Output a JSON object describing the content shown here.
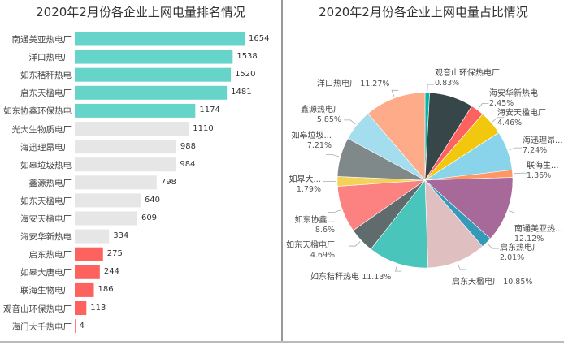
{
  "chart_data": [
    {
      "type": "bar",
      "orientation": "horizontal",
      "title": "2020年2月份各企业上网电量排名情况",
      "categories": [
        "南通美亚热电厂",
        "洋口热电厂",
        "如东秸秆热电",
        "启东天楹电厂",
        "如东协鑫环保热电",
        "光大生物质电厂",
        "海迅理昂电厂",
        "如皋垃圾热电",
        "鑫源热电厂",
        "如东天楹电厂",
        "海安天楹电厂",
        "海安华新热电",
        "启东热电厂",
        "如皋大唐电厂",
        "联海生物电厂",
        "观音山环保热电厂",
        "海门大千热电厂"
      ],
      "values": [
        1654,
        1538,
        1520,
        1481,
        1174,
        1110,
        988,
        984,
        798,
        640,
        609,
        334,
        275,
        244,
        186,
        113,
        4
      ],
      "colors": {
        "top": "#66D4C8",
        "middle": "#E6E6E6",
        "bottom": "#FD625E"
      },
      "grid": false
    },
    {
      "type": "pie",
      "title": "2020年2月份各企业上网电量占比情况",
      "slices": [
        {
          "label": "观音山环保热电厂",
          "pct": "0.83%",
          "value": 0.83,
          "color": "#01B8AA"
        },
        {
          "label": "",
          "pct": "",
          "value": 8.13,
          "color": "#374649"
        },
        {
          "label": "海安华新热电",
          "pct": "2.45%",
          "value": 2.45,
          "color": "#FD625E"
        },
        {
          "label": "海安天楹电厂",
          "pct": "4.46%",
          "value": 4.46,
          "color": "#F2C80F"
        },
        {
          "label": "",
          "pct": "",
          "value": 0.03,
          "color": "#5F6B6D"
        },
        {
          "label": "海迅理昂...",
          "pct": "7.24%",
          "value": 7.24,
          "color": "#8AD4EB"
        },
        {
          "label": "联海生...",
          "pct": "1.36%",
          "value": 1.36,
          "color": "#FE9666"
        },
        {
          "label": "南通美亚热...",
          "pct": "12.12%",
          "value": 12.12,
          "color": "#A66999"
        },
        {
          "label": "启东热电厂",
          "pct": "2.01%",
          "value": 2.01,
          "color": "#3599B8"
        },
        {
          "label": "启东天楹电厂",
          "pct": "10.85%",
          "value": 10.85,
          "color": "#DFBFBF"
        },
        {
          "label": "如东秸秆热电",
          "pct": "11.13%",
          "value": 11.13,
          "color": "#4AC5BB"
        },
        {
          "label": "如东天楹电厂",
          "pct": "4.69%",
          "value": 4.69,
          "color": "#5F6B6D"
        },
        {
          "label": "如东协鑫...",
          "pct": "8.6%",
          "value": 8.6,
          "color": "#FB8281"
        },
        {
          "label": "如皋大...",
          "pct": "1.79%",
          "value": 1.79,
          "color": "#F4D25A"
        },
        {
          "label": "如皋垃圾...",
          "pct": "7.21%",
          "value": 7.21,
          "color": "#7F898A"
        },
        {
          "label": "鑫源热电厂",
          "pct": "5.85%",
          "value": 5.85,
          "color": "#A4DDEE"
        },
        {
          "label": "洋口热电厂",
          "pct": "11.27%",
          "value": 11.27,
          "color": "#FDAB89"
        }
      ]
    }
  ]
}
